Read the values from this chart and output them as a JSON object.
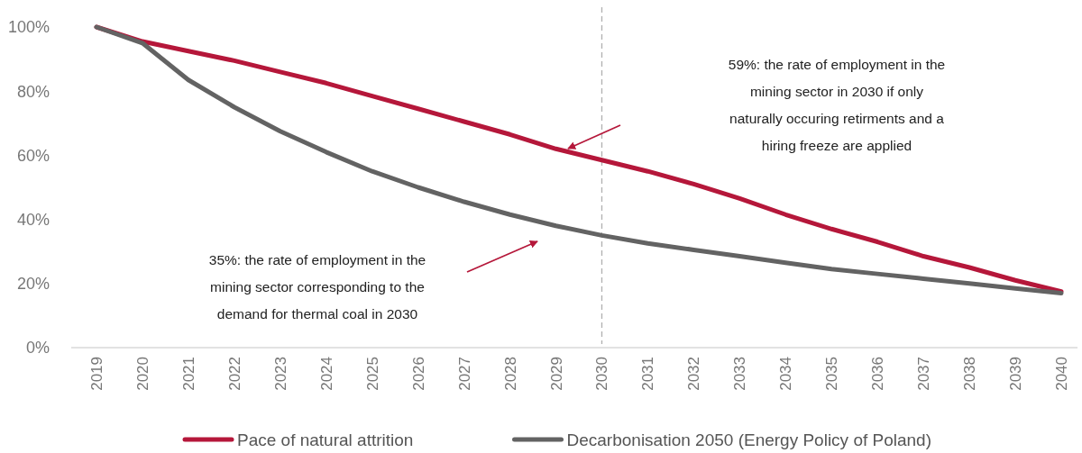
{
  "chart_data": {
    "type": "line",
    "categories": [
      "2019",
      "2020",
      "2021",
      "2022",
      "2023",
      "2024",
      "2025",
      "2026",
      "2027",
      "2028",
      "2029",
      "2030",
      "2031",
      "2032",
      "2033",
      "2034",
      "2035",
      "2036",
      "2037",
      "2038",
      "2039",
      "2040"
    ],
    "series": [
      {
        "name": "Pace of natural attrition",
        "color": "#b5173a",
        "values": [
          100,
          95.5,
          92.5,
          89.5,
          86,
          82.5,
          78.5,
          74.5,
          70.5,
          66.5,
          62,
          58.5,
          55,
          51,
          46.5,
          41.5,
          37,
          33,
          28.5,
          25,
          21,
          17.5
        ]
      },
      {
        "name": "Decarbonisation 2050 (Energy Policy of Poland)",
        "color": "#636363",
        "values": [
          100,
          95,
          83.5,
          75,
          67.5,
          61,
          55,
          50,
          45.5,
          41.5,
          38,
          35,
          32.5,
          30.5,
          28.5,
          26.5,
          24.5,
          23,
          21.5,
          20,
          18.5,
          17
        ]
      }
    ],
    "ylim": [
      0,
      100
    ],
    "yticks": [
      {
        "value": 0,
        "label": "0%"
      },
      {
        "value": 20,
        "label": "20%"
      },
      {
        "value": 40,
        "label": "40%"
      },
      {
        "value": 60,
        "label": "60%"
      },
      {
        "value": 80,
        "label": "80%"
      },
      {
        "value": 100,
        "label": "100%"
      }
    ],
    "grid": false,
    "legend": "bottom",
    "marker": "none",
    "line_style": "solid",
    "ref_lines": [
      {
        "axis": "x",
        "value": "2030",
        "color": "#b0b0b0",
        "line_style": "dashed"
      }
    ],
    "annotations": [
      "59%: the rate of employment in the mining sector in 2030 if only naturally occuring retirments and a hiring freeze are applied",
      "35%: the rate of employment in the mining sector corresponding to the demand for thermal coal in 2030"
    ]
  }
}
